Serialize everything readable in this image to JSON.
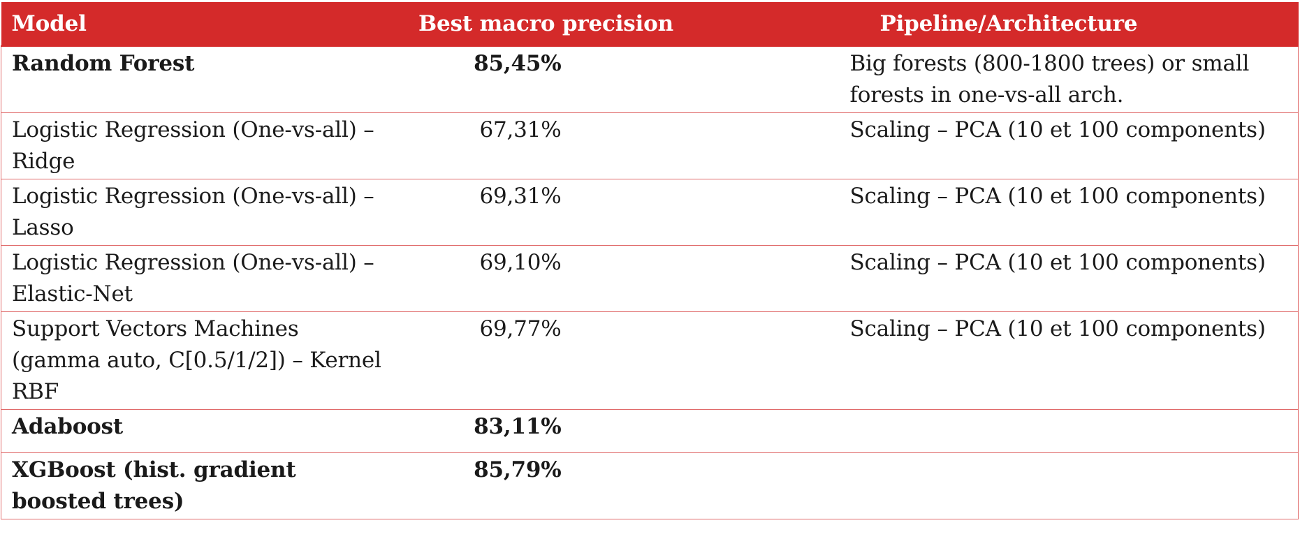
{
  "table": {
    "headers": {
      "model": "Model",
      "precision": "Best macro precision",
      "pipeline": "Pipeline/Architecture"
    },
    "rows": [
      {
        "model": "Random Forest",
        "precision": "85,45%",
        "pipeline": "Big forests (800-1800 trees) or small forests in one-vs-all arch.",
        "bold": true
      },
      {
        "model": "Logistic Regression (One-vs-all) – Ridge",
        "precision": "67,31%",
        "pipeline": "Scaling – PCA (10 et 100 components)",
        "bold": false
      },
      {
        "model": "Logistic Regression (One-vs-all) – Lasso",
        "precision": "69,31%",
        "pipeline": "Scaling – PCA (10 et 100 components)",
        "bold": false
      },
      {
        "model": "Logistic Regression (One-vs-all) – Elastic-Net",
        "precision": "69,10%",
        "pipeline": "Scaling – PCA (10 et 100 components)",
        "bold": false
      },
      {
        "model": "Support Vectors Machines (gamma auto, C[0.5/1/2]) – Kernel RBF",
        "precision": "69,77%",
        "pipeline": "Scaling – PCA (10 et 100 components)",
        "bold": false
      },
      {
        "model": "Adaboost",
        "precision": "83,11%",
        "pipeline": "",
        "bold": true
      },
      {
        "model": "XGBoost (hist. gradient boosted trees)",
        "precision": "85,79%",
        "pipeline": "",
        "bold": true
      }
    ]
  },
  "colors": {
    "header_background": "#d42a2a",
    "header_text": "#ffffff",
    "border": "#e06a6a"
  }
}
